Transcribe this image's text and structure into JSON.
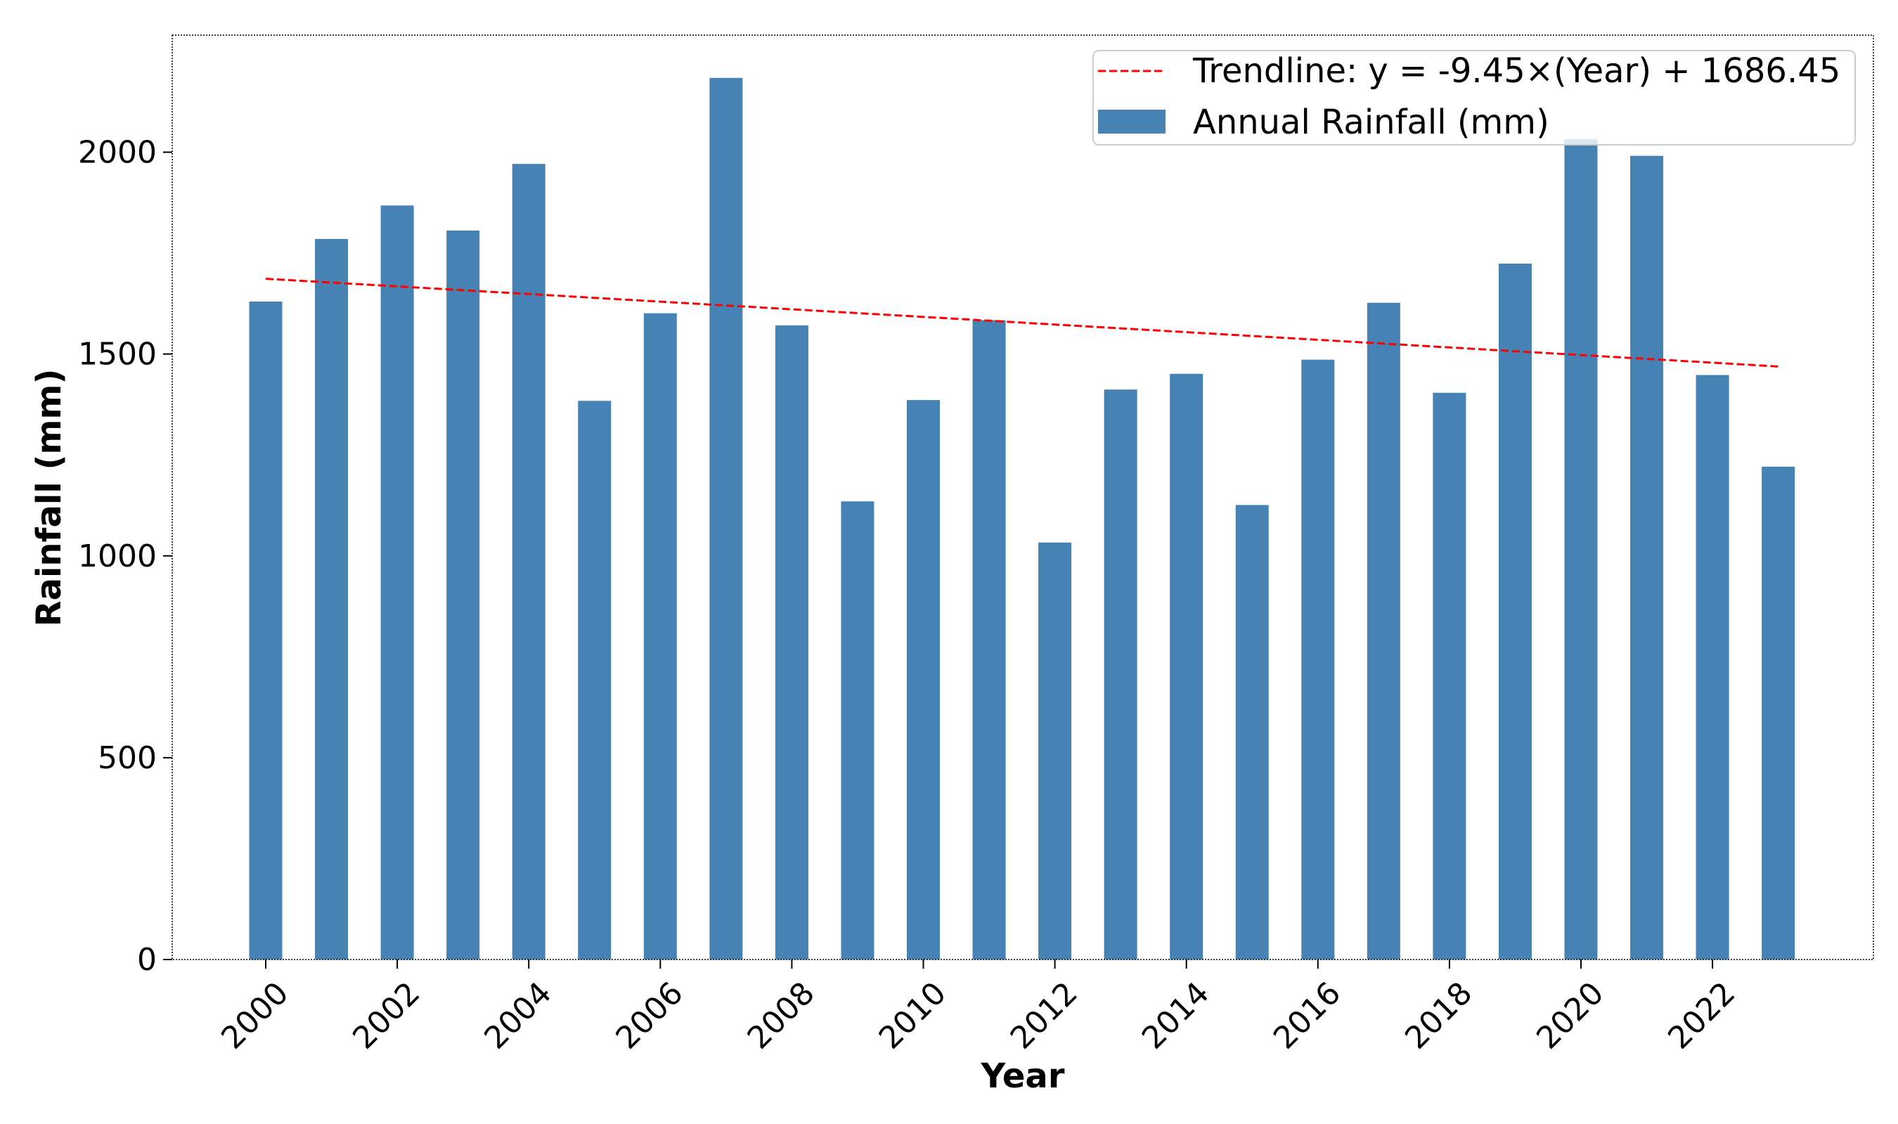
{
  "chart_data": {
    "type": "bar",
    "title": "",
    "xlabel": "Year",
    "ylabel": "Rainfall (mm)",
    "ylim": [
      0,
      2290
    ],
    "yticks": [
      0,
      500,
      1000,
      1500,
      2000
    ],
    "xticks": [
      2000,
      2002,
      2004,
      2006,
      2008,
      2010,
      2012,
      2014,
      2016,
      2018,
      2020,
      2022
    ],
    "grid": false,
    "legend_position": "top-right",
    "categories": [
      2000,
      2001,
      2002,
      2003,
      2004,
      2005,
      2006,
      2007,
      2008,
      2009,
      2010,
      2011,
      2012,
      2013,
      2014,
      2015,
      2016,
      2017,
      2018,
      2019,
      2020,
      2021,
      2022,
      2023
    ],
    "series": [
      {
        "name": "Annual Rainfall (mm)",
        "type": "bar",
        "color": "#4682b4",
        "values": [
          1630,
          1785,
          1868,
          1806,
          1971,
          1384,
          1601,
          2184,
          1571,
          1135,
          1386,
          1584,
          1033,
          1412,
          1451,
          1126,
          1486,
          1627,
          1404,
          1724,
          2032,
          1991,
          1448,
          1221
        ]
      },
      {
        "name": "Trendline: y = -9.45×(Year) + 1686.45",
        "type": "line",
        "style": "dashed",
        "color": "#ff0000",
        "slope": -9.45,
        "intercept": 1686.45,
        "x_origin": 2000
      }
    ]
  }
}
